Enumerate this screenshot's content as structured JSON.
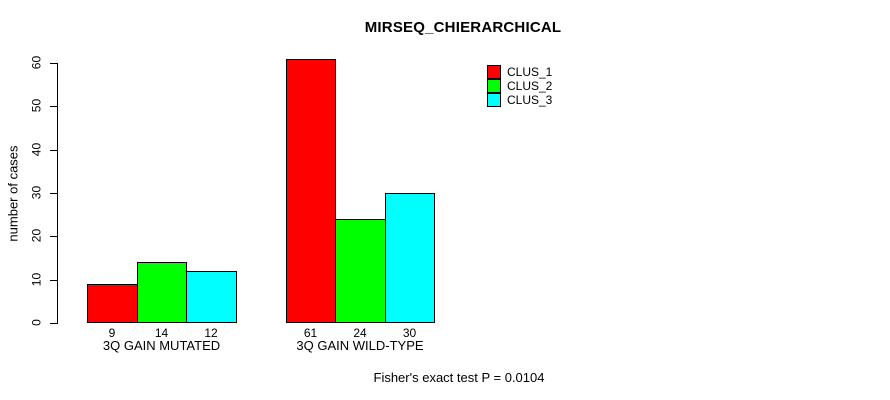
{
  "chart_data": {
    "type": "bar",
    "title": "MIRSEQ_CHIERARCHICAL",
    "ylabel": "number of cases",
    "xlabel": "",
    "ylim": [
      0,
      60
    ],
    "yticks": [
      0,
      10,
      20,
      30,
      40,
      50,
      60
    ],
    "grid": false,
    "legend_position": "top-right",
    "categories": [
      "3Q GAIN MUTATED",
      "3Q GAIN WILD-TYPE"
    ],
    "series": [
      {
        "name": "CLUS_1",
        "color": "#ff0000",
        "values": [
          9,
          61
        ]
      },
      {
        "name": "CLUS_2",
        "color": "#00ff00",
        "values": [
          14,
          24
        ]
      },
      {
        "name": "CLUS_3",
        "color": "#00ffff",
        "values": [
          12,
          30
        ]
      }
    ],
    "bar_value_labels": [
      [
        "9",
        "14",
        "12"
      ],
      [
        "61",
        "24",
        "30"
      ]
    ],
    "footnote": "Fisher's exact test P = 0.0104"
  },
  "colors": {
    "background": "#ffffff",
    "axis": "#000000",
    "text": "#000000"
  }
}
